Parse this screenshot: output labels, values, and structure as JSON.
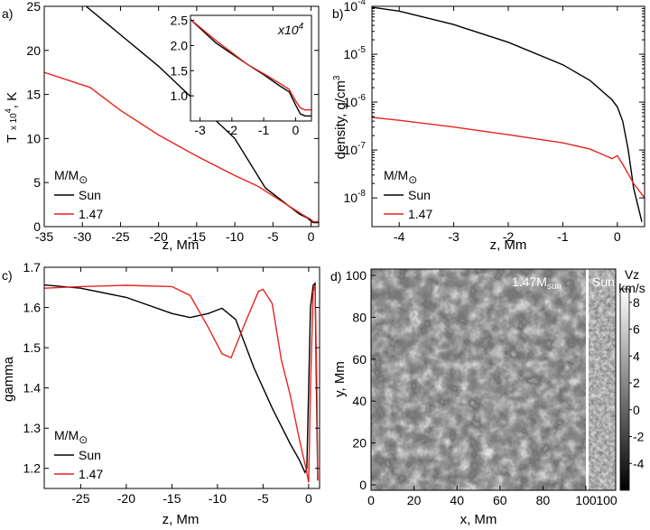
{
  "panels": {
    "a": {
      "label": "a)",
      "chart_data": {
        "type": "line",
        "xlabel": "z, Mm",
        "ylabel_main": "T",
        "ylabel_unit": ", K",
        "xlim": [
          -35,
          1
        ],
        "ylim": [
          0,
          25
        ],
        "xticks": [
          -35,
          -30,
          -25,
          -20,
          -15,
          -10,
          -5,
          0
        ],
        "yticks": [
          0,
          5,
          10,
          15,
          20,
          25
        ],
        "series": [
          {
            "name": "Sun",
            "color": "#000000",
            "x": [
              -29.5,
              -20,
              -10,
              -6,
              -3,
              -1.5,
              -0.5,
              0,
              0.3,
              1
            ],
            "y": [
              25,
              18.2,
              10.0,
              4.4,
              2.4,
              1.4,
              1.0,
              0.6,
              0.45,
              0.45
            ]
          },
          {
            "name": "1.47",
            "color": "#e8231f",
            "x": [
              -35,
              -29,
              -25,
              -20,
              -15,
              -10,
              -7,
              -5,
              -3,
              -1,
              0,
              0.3,
              1
            ],
            "y": [
              17.5,
              15.8,
              13.2,
              10.4,
              8.0,
              5.8,
              4.6,
              3.5,
              2.4,
              1.3,
              0.8,
              0.55,
              0.55
            ]
          }
        ],
        "inset": {
          "xlim": [
            -3.3,
            0.5
          ],
          "ylim": [
            0.5,
            2.6
          ],
          "xticks": [
            -3,
            -2,
            -1,
            0
          ],
          "yticks": [
            1.0,
            1.5,
            2.0,
            2.5
          ],
          "ytick_labels": [
            "1.0",
            "1.5",
            "2.0",
            "2.5"
          ],
          "exponent_label": "x10",
          "exponent_power": "4",
          "series": [
            {
              "name": "Sun",
              "color": "#000000",
              "x": [
                -3.3,
                -2.5,
                -1.5,
                -1,
                -0.5,
                -0.2,
                0,
                0.15,
                0.3,
                0.5
              ],
              "y": [
                2.52,
                2.05,
                1.62,
                1.42,
                1.2,
                1.08,
                0.82,
                0.64,
                0.6,
                0.6
              ]
            },
            {
              "name": "1.47",
              "color": "#e8231f",
              "x": [
                -3.3,
                -2.5,
                -1.5,
                -1,
                -0.5,
                -0.2,
                0,
                0.15,
                0.3,
                0.5
              ],
              "y": [
                2.52,
                2.1,
                1.62,
                1.44,
                1.25,
                1.13,
                0.9,
                0.76,
                0.72,
                0.72
              ]
            }
          ]
        },
        "legend": {
          "title": "M/M",
          "sub": "⊙",
          "position": "bottom-left"
        }
      }
    },
    "b": {
      "label": "b)",
      "chart_data": {
        "type": "line",
        "yscale": "log",
        "xlabel": "z, Mm",
        "ylabel": "density, g/cm",
        "ylabel_sup": "3",
        "xlim": [
          -4.5,
          0.5
        ],
        "ylim_exp": [
          -8.6,
          -4
        ],
        "xticks": [
          -4,
          -3,
          -2,
          -1,
          0
        ],
        "yticks_exp": [
          -8,
          -7,
          -6,
          -5,
          -4
        ],
        "ytick_base": "10",
        "series": [
          {
            "name": "Sun",
            "color": "#000000",
            "x": [
              -4.5,
              -4,
              -3,
              -2,
              -1,
              -0.5,
              -0.1,
              0,
              0.1,
              0.2,
              0.3,
              0.45
            ],
            "yexp": [
              -4.02,
              -4.1,
              -4.38,
              -4.75,
              -5.22,
              -5.55,
              -5.95,
              -6.1,
              -6.4,
              -7.0,
              -7.8,
              -8.5
            ]
          },
          {
            "name": "1.47",
            "color": "#e8231f",
            "x": [
              -4.5,
              -4,
              -3,
              -2,
              -1,
              -0.5,
              -0.2,
              -0.1,
              0,
              0.1,
              0.3,
              0.5
            ],
            "yexp": [
              -6.32,
              -6.38,
              -6.52,
              -6.68,
              -6.85,
              -6.98,
              -7.13,
              -7.18,
              -7.12,
              -7.3,
              -7.7,
              -8.0
            ]
          }
        ],
        "legend": {
          "title": "M/M",
          "sub": "⊙",
          "position": "bottom-left"
        }
      }
    },
    "c": {
      "label": "c)",
      "chart_data": {
        "type": "line",
        "xlabel": "z, Mm",
        "ylabel": "gamma",
        "xlim": [
          -29,
          1.2
        ],
        "ylim": [
          1.15,
          1.7
        ],
        "xticks": [
          -25,
          -20,
          -15,
          -10,
          -5,
          0
        ],
        "yticks": [
          1.2,
          1.3,
          1.4,
          1.5,
          1.6,
          1.7
        ],
        "ytick_labels": [
          "1.2",
          "1.3",
          "1.4",
          "1.5",
          "1.6",
          "1.7"
        ],
        "series": [
          {
            "name": "Sun",
            "color": "#000000",
            "x": [
              -29,
              -25,
              -20,
              -15,
              -13,
              -11,
              -9.5,
              -8,
              -6,
              -4,
              -2,
              -1,
              -0.4,
              -0.2,
              0,
              0.2,
              0.5,
              0.7,
              0.85,
              1.0
            ],
            "y": [
              1.656,
              1.648,
              1.625,
              1.585,
              1.575,
              1.585,
              1.598,
              1.57,
              1.45,
              1.35,
              1.26,
              1.22,
              1.19,
              1.2,
              1.4,
              1.6,
              1.655,
              1.66,
              1.4,
              1.17
            ]
          },
          {
            "name": "1.47",
            "color": "#e8231f",
            "x": [
              -29,
              -25,
              -20,
              -15,
              -13,
              -11,
              -9.5,
              -8.5,
              -7,
              -5.5,
              -5,
              -4,
              -3,
              -2,
              -1,
              -0.3,
              0,
              0.2,
              0.5,
              0.7,
              0.9,
              1.0
            ],
            "y": [
              1.648,
              1.652,
              1.655,
              1.652,
              1.63,
              1.55,
              1.485,
              1.475,
              1.56,
              1.64,
              1.645,
              1.61,
              1.47,
              1.38,
              1.27,
              1.2,
              1.165,
              1.4,
              1.64,
              1.655,
              1.4,
              1.17
            ]
          }
        ],
        "legend": {
          "title": "M/M",
          "sub": "⊙",
          "position": "bottom-left"
        }
      }
    },
    "d": {
      "label": "d)",
      "chart_data": {
        "type": "heatmap",
        "xlabel": "x, Mm",
        "ylabel": "y, Mm",
        "xlim": [
          0,
          100
        ],
        "ylim": [
          0,
          100
        ],
        "xticks": [
          0,
          20,
          40,
          60,
          80,
          100
        ],
        "yticks": [
          0,
          20,
          40,
          60,
          80,
          100
        ],
        "extra_xtick": "100",
        "title_147_main": "1.47M",
        "title_147_sub": "sun",
        "title_sun": "Sun",
        "colorbar": {
          "title_line1": "Vz",
          "title_line2": "km/s",
          "range": [
            -6,
            9
          ],
          "ticks": [
            -4,
            -2,
            0,
            2,
            4,
            6,
            8
          ]
        }
      }
    }
  },
  "legend_entries": {
    "sun": "Sun",
    "star": "1.47"
  },
  "colors": {
    "sun": "#000000",
    "star": "#e8231f"
  }
}
